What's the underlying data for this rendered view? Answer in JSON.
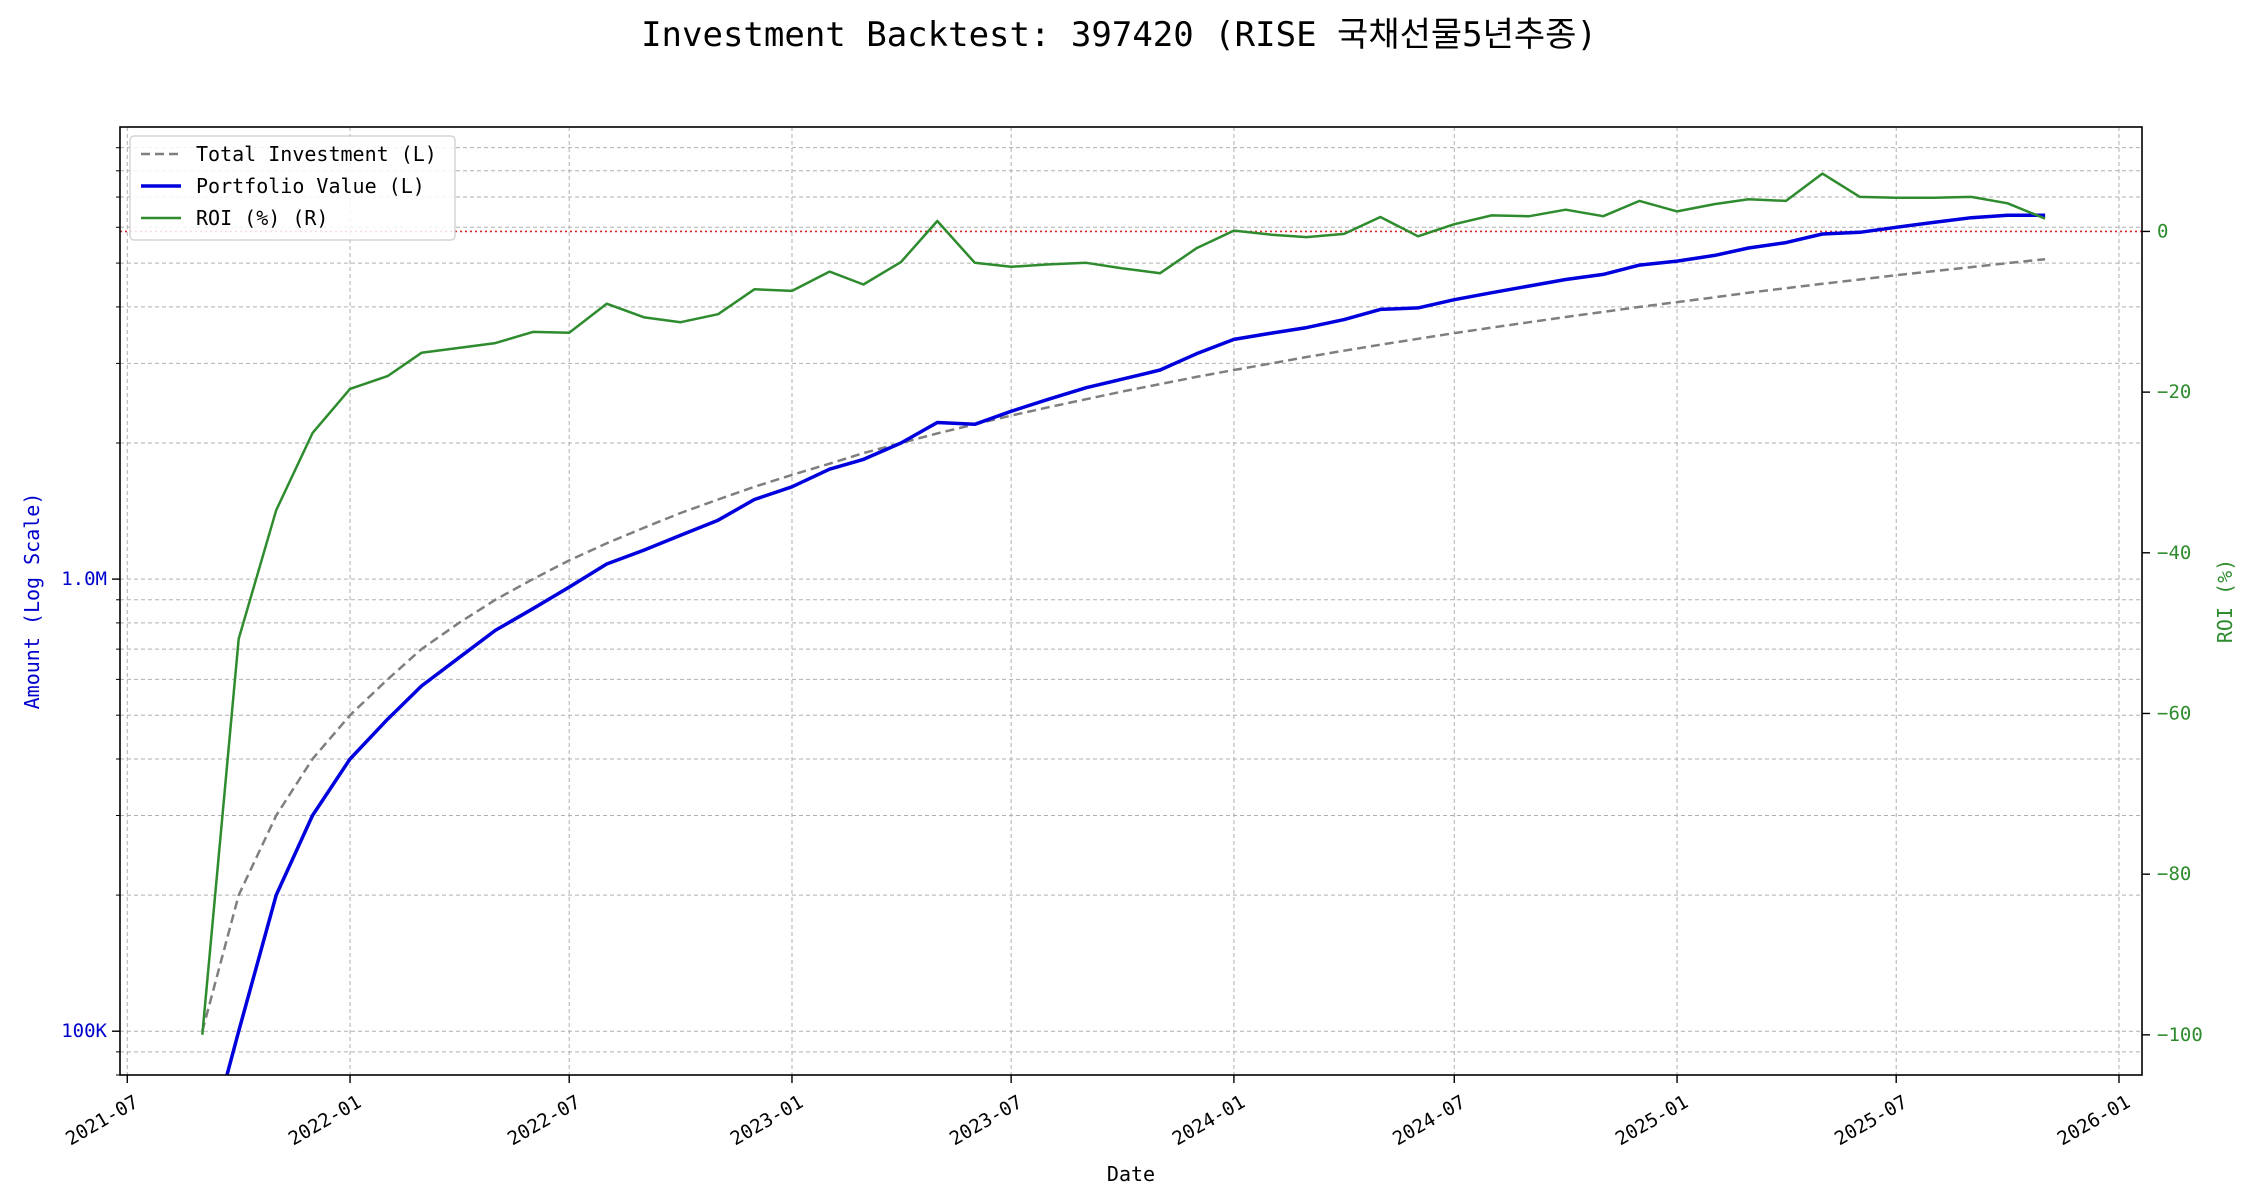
{
  "chart_data": {
    "type": "line",
    "title": "Investment Backtest: 397420 (RISE 국채선물5년추종)",
    "xlabel": "Date",
    "ylabel_left": "Amount (Log Scale)",
    "ylabel_right": "ROI (%)",
    "left_scale": "log",
    "left_ylim": [
      80000,
      10000000
    ],
    "right_ylim": [
      -105,
      13
    ],
    "xlim": [
      "2021-06-25",
      "2026-01-20"
    ],
    "x_ticks": [
      "2021-07",
      "2022-01",
      "2022-07",
      "2023-01",
      "2023-07",
      "2024-01",
      "2024-07",
      "2025-01",
      "2025-07",
      "2026-01"
    ],
    "left_major_ticks": [
      {
        "value": 100000,
        "label": "100K"
      },
      {
        "value": 1000000,
        "label": "1.0M"
      }
    ],
    "right_ticks": [
      0,
      -20,
      -40,
      -60,
      -80,
      -100
    ],
    "grid": true,
    "legend_position": "top-left",
    "reference_line": {
      "axis": "right",
      "value": 0,
      "color": "#d62728",
      "style": "dotted"
    },
    "colors": {
      "total_investment": "#7f7f7f",
      "portfolio_value": "#0000dd",
      "roi": "#2e8b2e",
      "left_axis": "#0000cc",
      "right_axis": "#2e8b2e"
    },
    "dates": [
      "2021-09-01",
      "2021-10-01",
      "2021-11-01",
      "2021-12-01",
      "2022-01-01",
      "2022-02-01",
      "2022-03-01",
      "2022-04-01",
      "2022-05-01",
      "2022-06-01",
      "2022-07-01",
      "2022-08-01",
      "2022-09-01",
      "2022-10-01",
      "2022-11-01",
      "2022-12-01",
      "2023-01-01",
      "2023-02-01",
      "2023-03-01",
      "2023-04-01",
      "2023-05-01",
      "2023-06-01",
      "2023-07-01",
      "2023-08-01",
      "2023-09-01",
      "2023-10-01",
      "2023-11-01",
      "2023-12-01",
      "2024-01-01",
      "2024-02-01",
      "2024-03-01",
      "2024-04-01",
      "2024-05-01",
      "2024-06-01",
      "2024-07-01",
      "2024-08-01",
      "2024-09-01",
      "2024-10-01",
      "2024-11-01",
      "2024-12-01",
      "2025-01-01",
      "2025-02-01",
      "2025-03-01",
      "2025-04-01",
      "2025-05-01",
      "2025-06-01",
      "2025-07-01",
      "2025-08-01",
      "2025-09-01",
      "2025-10-01",
      "2025-11-01"
    ],
    "series": [
      {
        "name": "Total Investment (L)",
        "axis": "left",
        "style": "dashed",
        "values": [
          100000,
          200000,
          300000,
          400000,
          500000,
          600000,
          700000,
          800000,
          900000,
          1000000,
          1100000,
          1200000,
          1300000,
          1400000,
          1500000,
          1600000,
          1700000,
          1800000,
          1900000,
          2000000,
          2100000,
          2200000,
          2300000,
          2400000,
          2500000,
          2600000,
          2700000,
          2800000,
          2900000,
          3000000,
          3100000,
          3200000,
          3300000,
          3400000,
          3500000,
          3600000,
          3700000,
          3800000,
          3900000,
          4000000,
          4100000,
          4200000,
          4300000,
          4400000,
          4500000,
          4600000,
          4700000,
          4800000,
          4900000,
          5000000,
          5100000
        ]
      },
      {
        "name": "Portfolio Value (L)",
        "axis": "left",
        "style": "solid",
        "values": [
          50000,
          100000,
          200000,
          300000,
          400000,
          490000,
          580000,
          670000,
          770000,
          860000,
          960000,
          1080000,
          1160000,
          1250000,
          1350000,
          1500000,
          1600000,
          1750000,
          1840000,
          2000000,
          2220000,
          2200000,
          2350000,
          2500000,
          2650000,
          2770000,
          2900000,
          3150000,
          3390000,
          3500000,
          3600000,
          3750000,
          3950000,
          3980000,
          4150000,
          4300000,
          4450000,
          4600000,
          4720000,
          4950000,
          5050000,
          5200000,
          5400000,
          5550000,
          5800000,
          5850000,
          6000000,
          6150000,
          6300000,
          6380000,
          6380000
        ]
      },
      {
        "name": "ROI (%) (R)",
        "axis": "right",
        "style": "solid",
        "values": [
          -100,
          -50.7,
          -34.7,
          -25.1,
          -19.6,
          -18,
          -15.1,
          -14.5,
          -13.9,
          -12.5,
          -12.6,
          -9,
          -10.7,
          -11.3,
          -10.3,
          -7.2,
          -7.4,
          -5,
          -6.6,
          -3.8,
          1.3,
          -3.9,
          -4.4,
          -4.1,
          -3.9,
          -4.6,
          -5.2,
          -2.1,
          0.1,
          -0.4,
          -0.7,
          -0.3,
          1.8,
          -0.6,
          0.9,
          2,
          1.9,
          2.7,
          1.9,
          3.8,
          2.5,
          3.4,
          4,
          3.8,
          7.2,
          4.3,
          4.2,
          4.2,
          4.3,
          3.5,
          1.6
        ]
      }
    ]
  }
}
